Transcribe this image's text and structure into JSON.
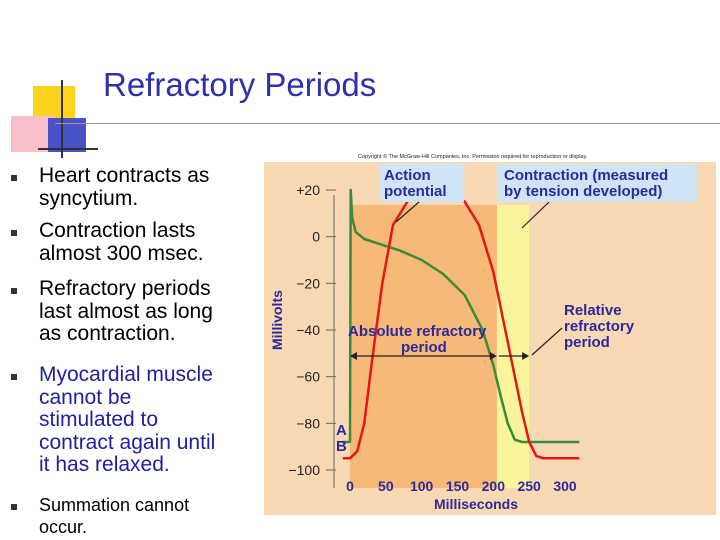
{
  "slide": {
    "title": "Refractory Periods",
    "bullets": [
      "Heart contracts as syncytium.",
      "Contraction lasts almost 300 msec.",
      "Refractory periods last almost as long as contraction.",
      "Myocardial muscle cannot be stimulated to contract again until it has relaxed.",
      "Summation cannot occur."
    ],
    "bullet_lines": [
      [
        "Heart contracts as",
        "syncytium."
      ],
      [
        "Contraction lasts",
        "almost 300 msec."
      ],
      [
        "Refractory periods",
        "last almost as long",
        "as contraction."
      ],
      [
        "Myocardial muscle",
        "cannot be",
        "stimulated to",
        "contract again until",
        "it has relaxed."
      ],
      [
        "Summation cannot",
        "occur."
      ]
    ]
  },
  "figure": {
    "copyright": "Copyright © The McGraw-Hill Companies, Inc. Permission required for reproduction or display.",
    "ylabel": "Millivolts",
    "xlabel": "Milliseconds",
    "ytick_labels": [
      "+20",
      "0",
      "−20",
      "−40",
      "−60",
      "−80",
      "−100"
    ],
    "xtick_labels": [
      "0",
      "50",
      "100",
      "150",
      "200",
      "250",
      "300"
    ],
    "label_action_potential": [
      "Action",
      "potential"
    ],
    "label_contraction": [
      "Contraction (measured",
      "by tension developed)"
    ],
    "label_absolute": [
      "Absolute refractory",
      "period"
    ],
    "label_relative": [
      "Relative",
      "refractory",
      "period"
    ],
    "marker_a": "A",
    "marker_b": "B",
    "colors": {
      "orange_region": "#f7b977",
      "yellow_region": "#faf59c",
      "plot_background": "#f9d8b4",
      "action_potential_line": "#3a8a3a",
      "contraction_line": "#e01818",
      "label_box": "#cfe4f4",
      "title": "#3030a8",
      "blue_text": "#2020a0"
    }
  },
  "chart_data": {
    "type": "line",
    "title": "",
    "xlabel": "Milliseconds",
    "ylabel": "Millivolts",
    "xlim": [
      -10,
      320
    ],
    "ylim": [
      -105,
      30
    ],
    "xticks": [
      0,
      50,
      100,
      150,
      200,
      250,
      300
    ],
    "yticks": [
      20,
      0,
      -20,
      -40,
      -60,
      -80,
      -100
    ],
    "regions": [
      {
        "name": "Absolute refractory period",
        "x": [
          0,
          205
        ]
      },
      {
        "name": "Relative refractory period",
        "x": [
          205,
          250
        ]
      }
    ],
    "series": [
      {
        "name": "Action potential",
        "x": [
          -10,
          0,
          1,
          3,
          8,
          20,
          40,
          70,
          100,
          130,
          160,
          185,
          200,
          210,
          220,
          230,
          240,
          255,
          270,
          300,
          320
        ],
        "y": [
          -88,
          -88,
          20,
          8,
          2,
          -1,
          -3,
          -6,
          -10,
          -16,
          -25,
          -40,
          -55,
          -68,
          -80,
          -87,
          -88,
          -88,
          -88,
          -88,
          -88
        ]
      },
      {
        "name": "Contraction (measured by tension developed)",
        "x": [
          -10,
          0,
          10,
          20,
          30,
          45,
          60,
          80,
          100,
          120,
          140,
          160,
          180,
          200,
          220,
          240,
          250,
          260,
          270,
          280,
          300,
          320
        ],
        "y": [
          -95,
          -95,
          -92,
          -80,
          -55,
          -20,
          5,
          15,
          19,
          20,
          19,
          15,
          5,
          -15,
          -45,
          -75,
          -88,
          -94,
          -95,
          -95,
          -95,
          -95
        ]
      }
    ]
  }
}
